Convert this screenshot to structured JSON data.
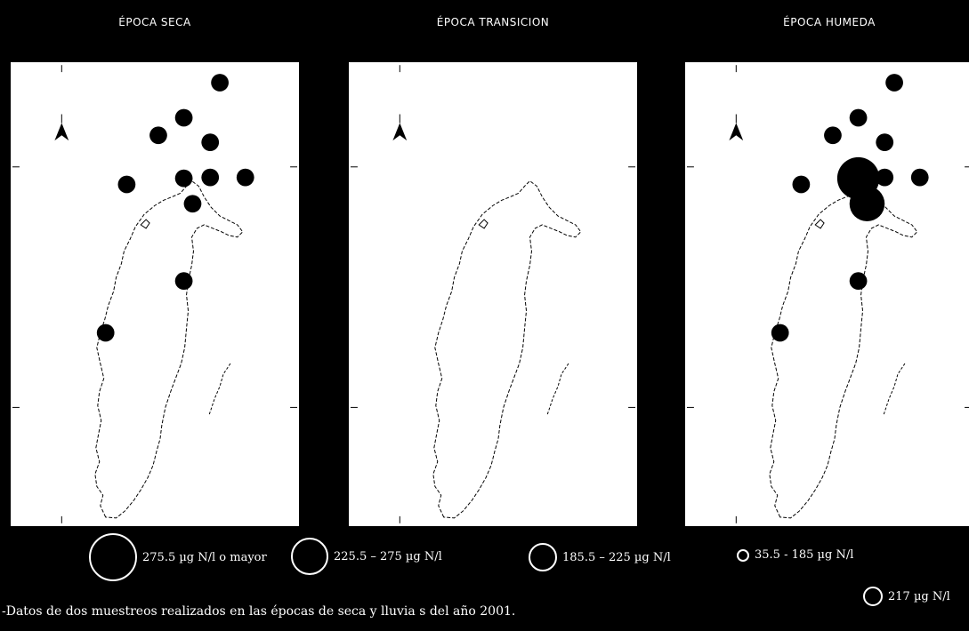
{
  "panels": [
    {
      "title": "ÉPOCA SECA",
      "stations": [
        {
          "size": "small"
        },
        {
          "size": "small"
        },
        {
          "size": "small"
        },
        {
          "size": "small"
        },
        {
          "size": "small"
        },
        {
          "size": "small"
        },
        {
          "size": "small"
        },
        {
          "size": "small"
        },
        {
          "size": "small"
        },
        {
          "size": "small"
        },
        {
          "size": "small"
        }
      ]
    },
    {
      "title": "ÉPOCA TRANSICION",
      "stations": []
    },
    {
      "title": "ÉPOCA HUMEDA",
      "stations": [
        {
          "size": "small"
        },
        {
          "size": "small"
        },
        {
          "size": "small"
        },
        {
          "size": "small"
        },
        {
          "size": "small"
        },
        {
          "size": "large"
        },
        {
          "size": "small"
        },
        {
          "size": "small"
        },
        {
          "size": "medium"
        },
        {
          "size": "small"
        },
        {
          "size": "small"
        }
      ]
    }
  ],
  "legend": [
    {
      "label": "275.5 µg N/l o mayor",
      "class": "largest"
    },
    {
      "label": "225.5 – 275 µg N/l",
      "class": "large"
    },
    {
      "label": "185.5 – 225 µg N/l",
      "class": "medium"
    },
    {
      "label": "35.5 - 185 µg N/l",
      "class": "small"
    },
    {
      "label": "217 µg N/l",
      "class": "reference"
    }
  ],
  "footnote": "-Datos de dos muestreos realizados en las épocas de seca y lluvia s del año 2001.",
  "colors": {
    "background": "#000000",
    "map": "#ffffff",
    "marker": "#000000"
  },
  "icons": [
    "north-arrow-icon"
  ]
}
